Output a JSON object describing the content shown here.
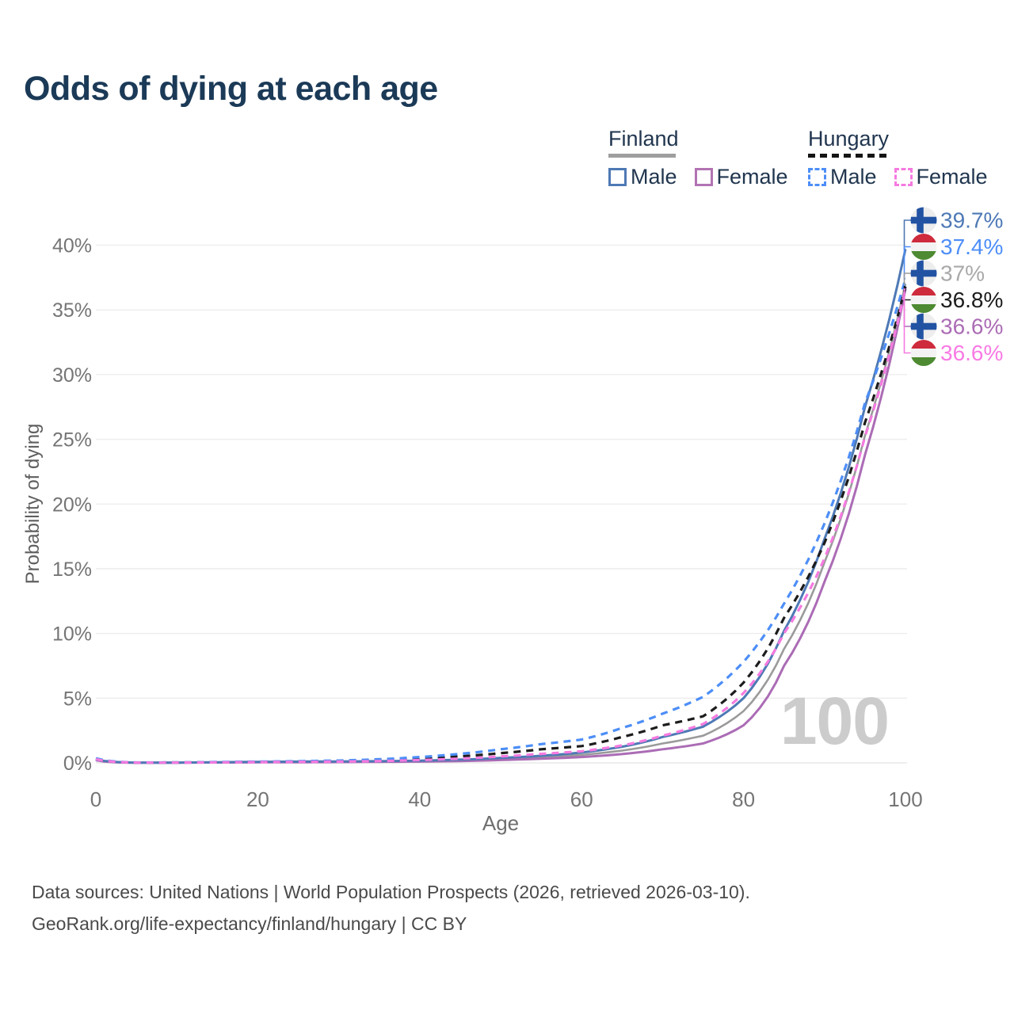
{
  "title": "Odds of dying at each age",
  "legend": {
    "groups": [
      {
        "country": "Finland",
        "line_style": "solid",
        "underline_color": "#9e9e9e",
        "items": [
          {
            "label": "Male",
            "color": "#4e79b5"
          },
          {
            "label": "Female",
            "color": "#b273b2"
          }
        ]
      },
      {
        "country": "Hungary",
        "line_style": "dashed",
        "underline_color": "#151515",
        "items": [
          {
            "label": "Male",
            "color": "#4d8ef7"
          },
          {
            "label": "Female",
            "color": "#f57ae0"
          }
        ]
      }
    ]
  },
  "chart_data": {
    "type": "line",
    "title": "Odds of dying at each age",
    "xlabel": "Age",
    "ylabel": "Probability of dying",
    "xlim": [
      0,
      100
    ],
    "ylim": [
      0,
      40
    ],
    "x_ticks": [
      0,
      20,
      40,
      60,
      80,
      100
    ],
    "y_tick_labels": [
      "0%",
      "5%",
      "10%",
      "15%",
      "20%",
      "25%",
      "30%",
      "35%",
      "40%"
    ],
    "grid": "horizontal",
    "legend_position": "top-right",
    "watermark": "100",
    "ages": [
      0,
      5,
      10,
      15,
      20,
      25,
      30,
      35,
      40,
      45,
      50,
      55,
      60,
      65,
      70,
      75,
      80,
      85,
      90,
      95,
      100
    ],
    "series": [
      {
        "name": "Finland Male",
        "country": "Finland",
        "sex": "Male",
        "color": "#4e79b5",
        "dashed": false,
        "flag": "finland",
        "end_label": "39.7%",
        "end_label_color": "#4e79b5",
        "end_value": 39.7,
        "values": [
          0.25,
          0.02,
          0.02,
          0.05,
          0.08,
          0.1,
          0.11,
          0.13,
          0.17,
          0.25,
          0.38,
          0.55,
          0.8,
          1.25,
          2.0,
          2.8,
          5.0,
          10.2,
          17.3,
          27.5,
          39.7
        ]
      },
      {
        "name": "Hungary Male",
        "country": "Hungary",
        "sex": "Male",
        "color": "#4d8ef7",
        "dashed": true,
        "flag": "hungary",
        "end_label": "37.4%",
        "end_label_color": "#4d8ef7",
        "end_value": 37.4,
        "values": [
          0.35,
          0.03,
          0.03,
          0.07,
          0.1,
          0.13,
          0.18,
          0.28,
          0.45,
          0.7,
          1.05,
          1.45,
          1.8,
          2.7,
          3.8,
          5.1,
          7.8,
          12.3,
          18.5,
          27.8,
          37.4
        ]
      },
      {
        "name": "Finland All",
        "country": "Finland",
        "sex": "All",
        "color": "#9a9a9a",
        "dashed": false,
        "flag": "finland",
        "end_label": "37%",
        "end_label_color": "#a9a9a9",
        "end_value": 37.0,
        "values": [
          0.22,
          0.02,
          0.02,
          0.04,
          0.06,
          0.08,
          0.09,
          0.11,
          0.14,
          0.2,
          0.3,
          0.43,
          0.62,
          0.95,
          1.5,
          2.1,
          4.0,
          8.8,
          15.5,
          25.3,
          37.0
        ]
      },
      {
        "name": "Hungary All",
        "country": "Hungary",
        "sex": "All",
        "color": "#1c1c1c",
        "dashed": true,
        "flag": "hungary",
        "end_label": "36.8%",
        "end_label_color": "#1c1c1c",
        "end_value": 36.8,
        "values": [
          0.3,
          0.02,
          0.03,
          0.05,
          0.08,
          0.1,
          0.13,
          0.2,
          0.32,
          0.5,
          0.75,
          1.05,
          1.3,
          2.0,
          2.9,
          3.6,
          6.2,
          11.2,
          17.0,
          26.3,
          36.8
        ]
      },
      {
        "name": "Finland Female",
        "country": "Finland",
        "sex": "Female",
        "color": "#ab6cb5",
        "dashed": false,
        "flag": "finland",
        "end_label": "36.6%",
        "end_label_color": "#ab6cb5",
        "end_value": 36.6,
        "values": [
          0.2,
          0.01,
          0.02,
          0.03,
          0.04,
          0.05,
          0.06,
          0.08,
          0.1,
          0.14,
          0.22,
          0.32,
          0.45,
          0.68,
          1.05,
          1.5,
          2.9,
          7.5,
          14.0,
          23.8,
          36.6
        ]
      },
      {
        "name": "Hungary Female",
        "country": "Hungary",
        "sex": "Female",
        "color": "#f57ae0",
        "dashed": true,
        "flag": "hungary",
        "end_label": "36.6%",
        "end_label_color": "#f87ae4",
        "end_value": 36.6,
        "values": [
          0.28,
          0.02,
          0.02,
          0.04,
          0.06,
          0.08,
          0.1,
          0.14,
          0.22,
          0.33,
          0.5,
          0.7,
          0.9,
          1.35,
          2.1,
          3.0,
          5.4,
          10.0,
          15.8,
          25.2,
          36.6
        ]
      }
    ]
  },
  "footer": {
    "line1": "Data sources: United Nations | World Population Prospects (2026, retrieved 2026-03-10).",
    "line2": "GeoRank.org/life-expectancy/finland/hungary | CC BY"
  }
}
